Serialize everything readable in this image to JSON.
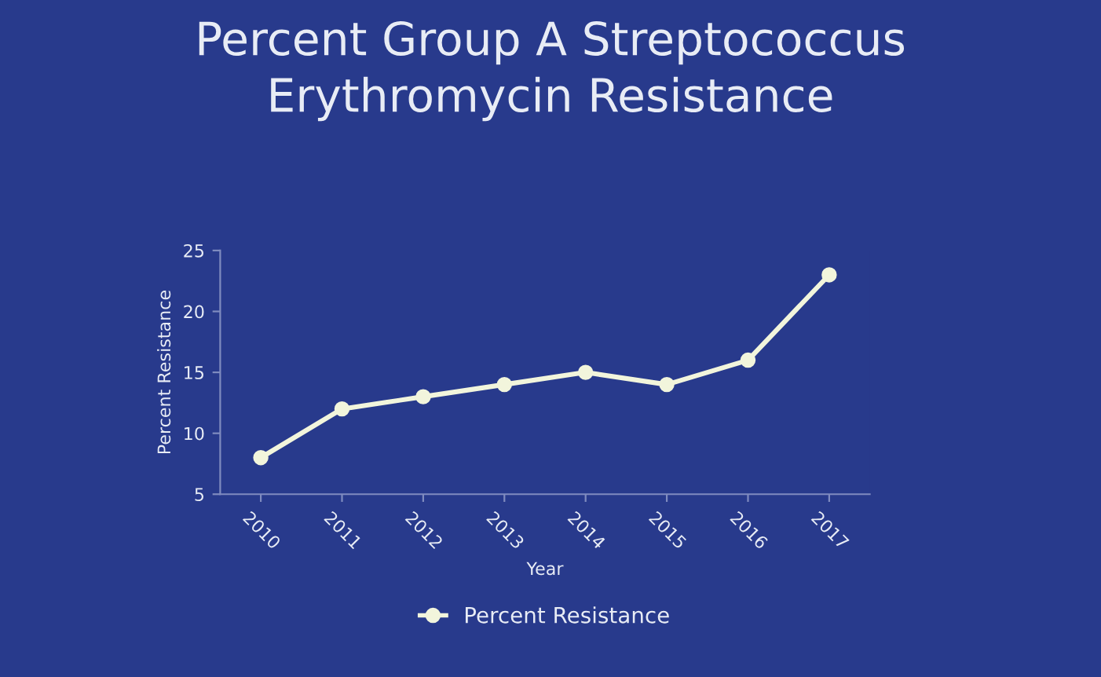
{
  "chart_data": {
    "type": "line",
    "title": "Percent Group A Streptococcus\nErythromycin Resistance",
    "xlabel": "Year",
    "ylabel": "Percent Resistance",
    "categories": [
      "2010",
      "2011",
      "2012",
      "2013",
      "2014",
      "2015",
      "2016",
      "2017"
    ],
    "series": [
      {
        "name": "Percent Resistance",
        "color": "#f2f5dc",
        "values": [
          8,
          12,
          13,
          14,
          15,
          14,
          16,
          23
        ]
      }
    ],
    "ylim": [
      5,
      25
    ],
    "yticks": [
      5,
      10,
      15,
      20,
      25
    ],
    "grid": false,
    "legend": "bottom",
    "marker": "circle",
    "line_style": "solid"
  }
}
